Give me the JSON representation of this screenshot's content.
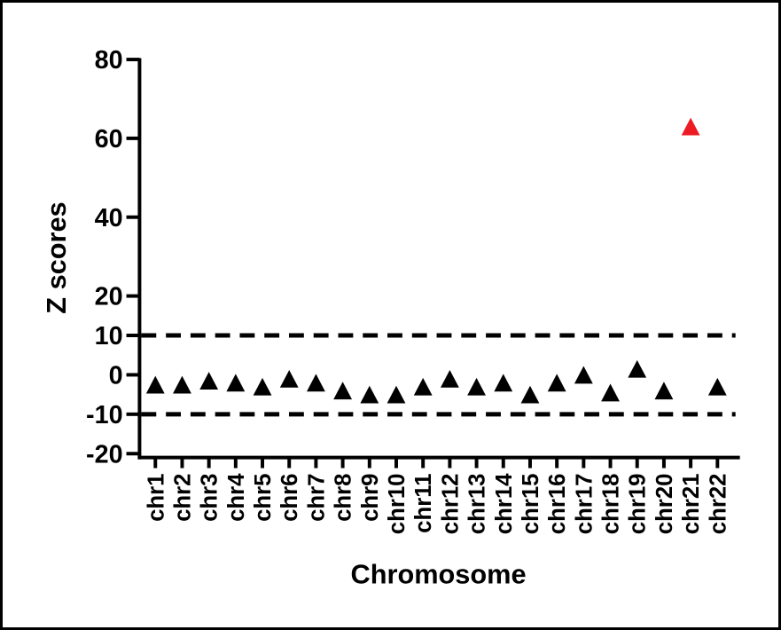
{
  "figure": {
    "background_color": "#ffffff",
    "border_color": "#000000"
  },
  "chart_data": {
    "type": "scatter",
    "marker": "triangle",
    "title": "",
    "xlabel": "Chromosome",
    "ylabel": "Z scores",
    "categories": [
      "chr1",
      "chr2",
      "chr3",
      "chr4",
      "chr5",
      "chr6",
      "chr7",
      "chr8",
      "chr9",
      "chr10",
      "chr11",
      "chr12",
      "chr13",
      "chr14",
      "chr15",
      "chr16",
      "chr17",
      "chr18",
      "chr19",
      "chr20",
      "chr21",
      "chr22"
    ],
    "values": [
      -2.5,
      -2.5,
      -1.5,
      -2,
      -3,
      -1,
      -2,
      -4,
      -5,
      -5,
      -3,
      -1,
      -3,
      -2,
      -5,
      -2,
      0,
      -4.5,
      1.5,
      -4,
      63,
      -3
    ],
    "highlight": {
      "category": "chr21",
      "index": 20,
      "value": 63,
      "color": "#ED1C24"
    },
    "point_color_default": "#000000",
    "axis_color": "#000000",
    "ylim": [
      -20,
      80
    ],
    "y_ticks": [
      80,
      60,
      40,
      20,
      10,
      0,
      -10,
      -20
    ],
    "y_tick_labels": [
      "80",
      "60",
      "40",
      "20",
      "10",
      "0",
      "-10",
      "-20"
    ],
    "threshold_lines": [
      10,
      -10
    ],
    "threshold_style": "dashed",
    "threshold_color": "#000000",
    "grid": false,
    "legend": false
  }
}
